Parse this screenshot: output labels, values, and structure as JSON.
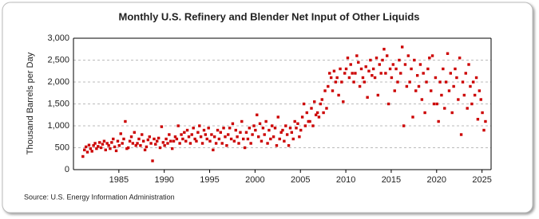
{
  "chart_data": {
    "type": "scatter",
    "title": "Monthly U.S. Refinery and Blender Net Input of Other Liquids",
    "y_label": "Thousand Barrels per Day",
    "source": "Source: U.S. Energy Information Administration",
    "color": "#cc0000",
    "grid": true,
    "xlim": [
      1980,
      2026
    ],
    "xticks": [
      1985,
      1990,
      1995,
      2000,
      2005,
      2010,
      2015,
      2020,
      2025
    ],
    "ylim": [
      0,
      3000
    ],
    "yticks": [
      0,
      500,
      {
        "value": 1000,
        "label": "1,000"
      },
      {
        "value": 1500,
        "label": "1,500"
      },
      {
        "value": 2000,
        "label": "2,000"
      },
      {
        "value": 2500,
        "label": "2,500"
      },
      {
        "value": 3000,
        "label": "3,000"
      }
    ],
    "x": [
      1981.04,
      1981.21,
      1981.38,
      1981.54,
      1981.71,
      1981.88,
      1982.04,
      1982.21,
      1982.38,
      1982.54,
      1982.71,
      1982.88,
      1983.04,
      1983.21,
      1983.38,
      1983.54,
      1983.71,
      1983.88,
      1984.04,
      1984.21,
      1984.38,
      1984.54,
      1984.71,
      1984.88,
      1985.04,
      1985.21,
      1985.38,
      1985.54,
      1985.71,
      1985.88,
      1986.04,
      1986.21,
      1986.38,
      1986.54,
      1986.71,
      1986.88,
      1987.04,
      1987.21,
      1987.38,
      1987.54,
      1987.71,
      1987.88,
      1988.04,
      1988.21,
      1988.38,
      1988.54,
      1988.71,
      1988.88,
      1989.04,
      1989.21,
      1989.38,
      1989.54,
      1989.71,
      1989.88,
      1990.04,
      1990.21,
      1990.38,
      1990.54,
      1990.71,
      1990.88,
      1991.04,
      1991.21,
      1991.38,
      1991.54,
      1991.71,
      1991.88,
      1992.04,
      1992.21,
      1992.38,
      1992.54,
      1992.71,
      1992.88,
      1993.04,
      1993.21,
      1993.38,
      1993.54,
      1993.71,
      1993.88,
      1994.04,
      1994.21,
      1994.38,
      1994.54,
      1994.71,
      1994.88,
      1995.04,
      1995.21,
      1995.38,
      1995.54,
      1995.71,
      1995.88,
      1996.04,
      1996.21,
      1996.38,
      1996.54,
      1996.71,
      1996.88,
      1997.04,
      1997.21,
      1997.38,
      1997.54,
      1997.71,
      1997.88,
      1998.04,
      1998.21,
      1998.38,
      1998.54,
      1998.71,
      1998.88,
      1999.04,
      1999.21,
      1999.38,
      1999.54,
      1999.71,
      1999.88,
      2000.04,
      2000.21,
      2000.38,
      2000.54,
      2000.71,
      2000.88,
      2001.04,
      2001.21,
      2001.38,
      2001.54,
      2001.71,
      2001.88,
      2002.04,
      2002.21,
      2002.38,
      2002.54,
      2002.71,
      2002.88,
      2003.04,
      2003.21,
      2003.38,
      2003.54,
      2003.71,
      2003.88,
      2004.04,
      2004.21,
      2004.38,
      2004.54,
      2004.71,
      2004.88,
      2005.04,
      2005.21,
      2005.38,
      2005.54,
      2005.71,
      2005.88,
      2006.04,
      2006.21,
      2006.38,
      2006.54,
      2006.71,
      2006.88,
      2007.04,
      2007.21,
      2007.38,
      2007.54,
      2007.71,
      2007.88,
      2008.04,
      2008.21,
      2008.38,
      2008.54,
      2008.71,
      2008.88,
      2009.04,
      2009.21,
      2009.38,
      2009.54,
      2009.71,
      2009.88,
      2010.04,
      2010.21,
      2010.38,
      2010.54,
      2010.71,
      2010.88,
      2011.04,
      2011.21,
      2011.38,
      2011.54,
      2011.71,
      2011.88,
      2012.04,
      2012.21,
      2012.38,
      2012.54,
      2012.71,
      2012.88,
      2013.04,
      2013.21,
      2013.38,
      2013.54,
      2013.71,
      2013.88,
      2014.04,
      2014.21,
      2014.38,
      2014.54,
      2014.71,
      2014.88,
      2015.04,
      2015.21,
      2015.38,
      2015.54,
      2015.71,
      2015.88,
      2016.04,
      2016.21,
      2016.38,
      2016.54,
      2016.71,
      2016.88,
      2017.04,
      2017.21,
      2017.38,
      2017.54,
      2017.71,
      2017.88,
      2018.04,
      2018.21,
      2018.38,
      2018.54,
      2018.71,
      2018.88,
      2019.04,
      2019.21,
      2019.38,
      2019.54,
      2019.71,
      2019.88,
      2020.04,
      2020.21,
      2020.38,
      2020.54,
      2020.71,
      2020.88,
      2021.04,
      2021.21,
      2021.38,
      2021.54,
      2021.71,
      2021.88,
      2022.04,
      2022.21,
      2022.38,
      2022.54,
      2022.71,
      2022.88,
      2023.04,
      2023.21,
      2023.38,
      2023.54,
      2023.71,
      2023.88,
      2024.04,
      2024.21,
      2024.38,
      2024.54,
      2024.71,
      2024.88,
      2025.04,
      2025.21,
      2025.38
    ],
    "values": [
      300,
      450,
      520,
      400,
      560,
      480,
      420,
      550,
      600,
      480,
      530,
      620,
      500,
      580,
      650,
      450,
      600,
      550,
      480,
      620,
      700,
      520,
      430,
      650,
      550,
      820,
      600,
      700,
      1100,
      480,
      500,
      650,
      750,
      600,
      850,
      550,
      600,
      700,
      550,
      800,
      650,
      450,
      520,
      680,
      750,
      600,
      200,
      700,
      580,
      650,
      720,
      500,
      980,
      620,
      550,
      700,
      600,
      800,
      650,
      480,
      650,
      750,
      700,
      1000,
      600,
      800,
      700,
      850,
      650,
      900,
      750,
      600,
      800,
      950,
      700,
      650,
      850,
      1000,
      750,
      600,
      900,
      800,
      700,
      950,
      650,
      800,
      450,
      750,
      600,
      900,
      700,
      850,
      600,
      950,
      750,
      550,
      800,
      950,
      700,
      1050,
      650,
      900,
      750,
      600,
      850,
      1100,
      700,
      500,
      850,
      700,
      950,
      600,
      800,
      1000,
      900,
      1250,
      750,
      1050,
      650,
      950,
      800,
      1100,
      600,
      900,
      700,
      1000,
      750,
      950,
      550,
      1200,
      700,
      850,
      900,
      650,
      1000,
      800,
      550,
      950,
      850,
      700,
      1100,
      950,
      1050,
      750,
      900,
      1200,
      1500,
      1000,
      1300,
      1100,
      1100,
      1400,
      1000,
      1550,
      1250,
      1300,
      1200,
      1500,
      1600,
      1300,
      1800,
      1400,
      1900,
      2200,
      2100,
      1800,
      2250,
      2000,
      2100,
      1700,
      2300,
      2000,
      1550,
      2200,
      2300,
      2550,
      2100,
      2400,
      2200,
      2000,
      2200,
      2600,
      2450,
      1900,
      2300,
      2100,
      2000,
      2350,
      1650,
      2250,
      2500,
      2150,
      2300,
      2100,
      2550,
      1700,
      2400,
      2200,
      2500,
      2750,
      2200,
      2600,
      1500,
      2300,
      2100,
      2400,
      1800,
      2300,
      2000,
      2500,
      2200,
      2800,
      1000,
      2400,
      1900,
      2600,
      2000,
      2300,
      1200,
      2500,
      1800,
      2150,
      1900,
      2400,
      1600,
      2200,
      1300,
      2000,
      2300,
      2550,
      1800,
      2600,
      1500,
      2100,
      1500,
      1100,
      2000,
      1700,
      2300,
      1400,
      2000,
      2650,
      1800,
      2200,
      1300,
      1900,
      2300,
      2100,
      1600,
      2550,
      800,
      2000,
      1700,
      2200,
      1400,
      2400,
      1900,
      1500,
      2000,
      1700,
      2100,
      1150,
      1800,
      1600,
      1300,
      900,
      1100
    ]
  }
}
